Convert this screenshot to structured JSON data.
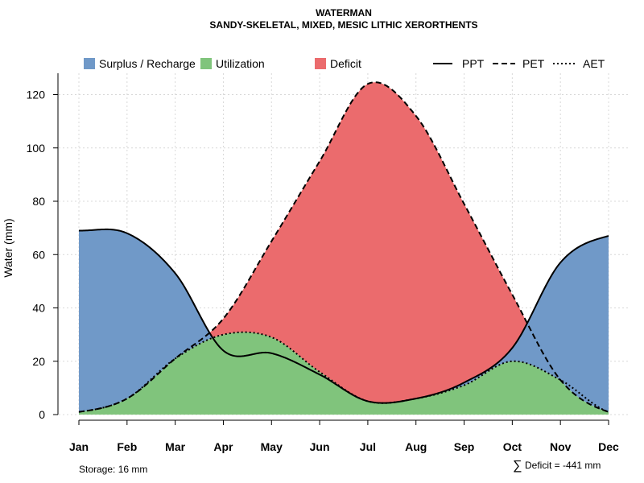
{
  "chart_data": {
    "type": "area",
    "title": "WATERMAN",
    "subtitle": "SANDY-SKELETAL, MIXED, MESIC LITHIC XERORTHENTS",
    "xlabel": "",
    "ylabel": "Water (mm)",
    "categories": [
      "Jan",
      "Feb",
      "Mar",
      "Apr",
      "May",
      "Jun",
      "Jul",
      "Aug",
      "Sep",
      "Oct",
      "Nov",
      "Dec"
    ],
    "ylim": [
      0,
      128
    ],
    "yticks": [
      "0",
      "20",
      "40",
      "60",
      "80",
      "100",
      "120"
    ],
    "grid": true,
    "legend_position": "top",
    "series": [
      {
        "name": "PPT",
        "style": "solid",
        "values": [
          69,
          68,
          53,
          24,
          23,
          15,
          5,
          6,
          12,
          25,
          57,
          67
        ]
      },
      {
        "name": "PET",
        "style": "dashed",
        "values": [
          1,
          6,
          21,
          36,
          65,
          95,
          124,
          112,
          79,
          45,
          13,
          1
        ]
      },
      {
        "name": "AET",
        "style": "dotted",
        "values": [
          1,
          6,
          21,
          30,
          29,
          16,
          5,
          6,
          11,
          20,
          13,
          1
        ]
      }
    ],
    "areas": [
      {
        "name": "Surplus / Recharge",
        "color": "#7099c8"
      },
      {
        "name": "Utilization",
        "color": "#80c47c"
      },
      {
        "name": "Deficit",
        "color": "#eb6b6d"
      }
    ],
    "annotations": {
      "storage": "Storage: 16 mm",
      "deficit_symbol": "∑",
      "deficit": "Deficit = -441 mm"
    }
  }
}
